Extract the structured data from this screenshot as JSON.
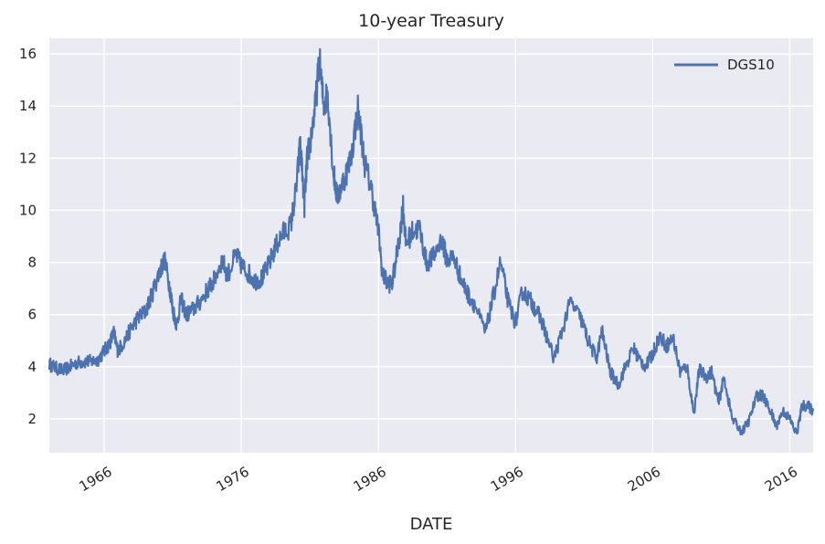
{
  "chart_data": {
    "type": "line",
    "title": "10-year Treasury",
    "xlabel": "DATE",
    "ylabel": "",
    "xlim": [
      1962.0,
      2017.7
    ],
    "ylim": [
      0.7,
      16.6
    ],
    "grid": true,
    "legend": "top-right",
    "x_ticks": [
      1966,
      1976,
      1986,
      1996,
      2006,
      2016
    ],
    "x_tick_labels": [
      "1966",
      "1976",
      "1986",
      "1996",
      "2006",
      "2016"
    ],
    "y_ticks": [
      2,
      4,
      6,
      8,
      10,
      12,
      14,
      16
    ],
    "y_tick_labels": [
      "2",
      "4",
      "6",
      "8",
      "10",
      "12",
      "14",
      "16"
    ],
    "colors": {
      "line": "#4c72b0",
      "plot_bg": "#eaeaf2",
      "grid": "#ffffff"
    },
    "series": [
      {
        "name": "DGS10",
        "points": [
          [
            1962.0,
            4.1
          ],
          [
            1962.5,
            3.95
          ],
          [
            1963.0,
            3.85
          ],
          [
            1963.5,
            4.0
          ],
          [
            1964.0,
            4.15
          ],
          [
            1964.5,
            4.2
          ],
          [
            1965.0,
            4.2
          ],
          [
            1965.5,
            4.25
          ],
          [
            1966.0,
            4.6
          ],
          [
            1966.4,
            4.9
          ],
          [
            1966.7,
            5.3
          ],
          [
            1967.0,
            4.6
          ],
          [
            1967.5,
            5.0
          ],
          [
            1968.0,
            5.5
          ],
          [
            1968.5,
            5.9
          ],
          [
            1969.0,
            6.1
          ],
          [
            1969.5,
            6.8
          ],
          [
            1970.0,
            7.6
          ],
          [
            1970.4,
            8.1
          ],
          [
            1970.8,
            7.0
          ],
          [
            1971.0,
            6.2
          ],
          [
            1971.3,
            5.6
          ],
          [
            1971.6,
            6.6
          ],
          [
            1972.0,
            6.0
          ],
          [
            1972.5,
            6.2
          ],
          [
            1973.0,
            6.5
          ],
          [
            1973.6,
            7.0
          ],
          [
            1974.0,
            7.3
          ],
          [
            1974.6,
            8.1
          ],
          [
            1975.0,
            7.5
          ],
          [
            1975.6,
            8.3
          ],
          [
            1976.0,
            7.9
          ],
          [
            1976.5,
            7.6
          ],
          [
            1977.0,
            7.3
          ],
          [
            1977.5,
            7.4
          ],
          [
            1978.0,
            7.9
          ],
          [
            1978.5,
            8.6
          ],
          [
            1979.0,
            9.1
          ],
          [
            1979.6,
            9.4
          ],
          [
            1980.0,
            10.8
          ],
          [
            1980.3,
            12.6
          ],
          [
            1980.6,
            10.2
          ],
          [
            1980.8,
            12.0
          ],
          [
            1981.0,
            12.5
          ],
          [
            1981.4,
            14.0
          ],
          [
            1981.7,
            15.8
          ],
          [
            1982.0,
            14.0
          ],
          [
            1982.3,
            14.5
          ],
          [
            1982.7,
            11.5
          ],
          [
            1983.0,
            10.5
          ],
          [
            1983.5,
            11.2
          ],
          [
            1984.0,
            12.0
          ],
          [
            1984.5,
            13.9
          ],
          [
            1985.0,
            11.8
          ],
          [
            1985.5,
            10.8
          ],
          [
            1986.0,
            9.2
          ],
          [
            1986.3,
            7.5
          ],
          [
            1986.7,
            7.2
          ],
          [
            1987.0,
            7.2
          ],
          [
            1987.5,
            8.8
          ],
          [
            1987.8,
            10.2
          ],
          [
            1988.0,
            8.7
          ],
          [
            1988.5,
            9.2
          ],
          [
            1989.0,
            9.3
          ],
          [
            1989.5,
            8.0
          ],
          [
            1990.0,
            8.2
          ],
          [
            1990.6,
            8.9
          ],
          [
            1991.0,
            8.1
          ],
          [
            1991.5,
            8.2
          ],
          [
            1992.0,
            7.4
          ],
          [
            1992.5,
            6.8
          ],
          [
            1993.0,
            6.4
          ],
          [
            1993.8,
            5.3
          ],
          [
            1994.3,
            6.5
          ],
          [
            1994.9,
            8.0
          ],
          [
            1995.5,
            6.4
          ],
          [
            1996.0,
            5.7
          ],
          [
            1996.5,
            6.9
          ],
          [
            1997.0,
            6.6
          ],
          [
            1997.5,
            6.2
          ],
          [
            1998.0,
            5.6
          ],
          [
            1998.8,
            4.3
          ],
          [
            1999.3,
            5.2
          ],
          [
            2000.0,
            6.5
          ],
          [
            2000.8,
            5.8
          ],
          [
            2001.3,
            5.0
          ],
          [
            2001.9,
            4.3
          ],
          [
            2002.3,
            5.4
          ],
          [
            2002.9,
            3.8
          ],
          [
            2003.5,
            3.3
          ],
          [
            2004.0,
            4.0
          ],
          [
            2004.6,
            4.7
          ],
          [
            2005.0,
            4.3
          ],
          [
            2005.5,
            4.0
          ],
          [
            2006.0,
            4.5
          ],
          [
            2006.5,
            5.2
          ],
          [
            2007.0,
            4.8
          ],
          [
            2007.5,
            5.1
          ],
          [
            2008.0,
            3.8
          ],
          [
            2008.5,
            4.0
          ],
          [
            2009.0,
            2.2
          ],
          [
            2009.4,
            3.9
          ],
          [
            2009.9,
            3.6
          ],
          [
            2010.3,
            3.8
          ],
          [
            2010.8,
            2.6
          ],
          [
            2011.2,
            3.6
          ],
          [
            2011.8,
            2.0
          ],
          [
            2012.5,
            1.5
          ],
          [
            2013.0,
            1.9
          ],
          [
            2013.6,
            2.9
          ],
          [
            2014.0,
            2.9
          ],
          [
            2014.6,
            2.3
          ],
          [
            2015.0,
            1.7
          ],
          [
            2015.5,
            2.3
          ],
          [
            2016.0,
            2.0
          ],
          [
            2016.5,
            1.4
          ],
          [
            2016.9,
            2.5
          ],
          [
            2017.3,
            2.5
          ],
          [
            2017.7,
            2.3
          ]
        ]
      }
    ]
  }
}
